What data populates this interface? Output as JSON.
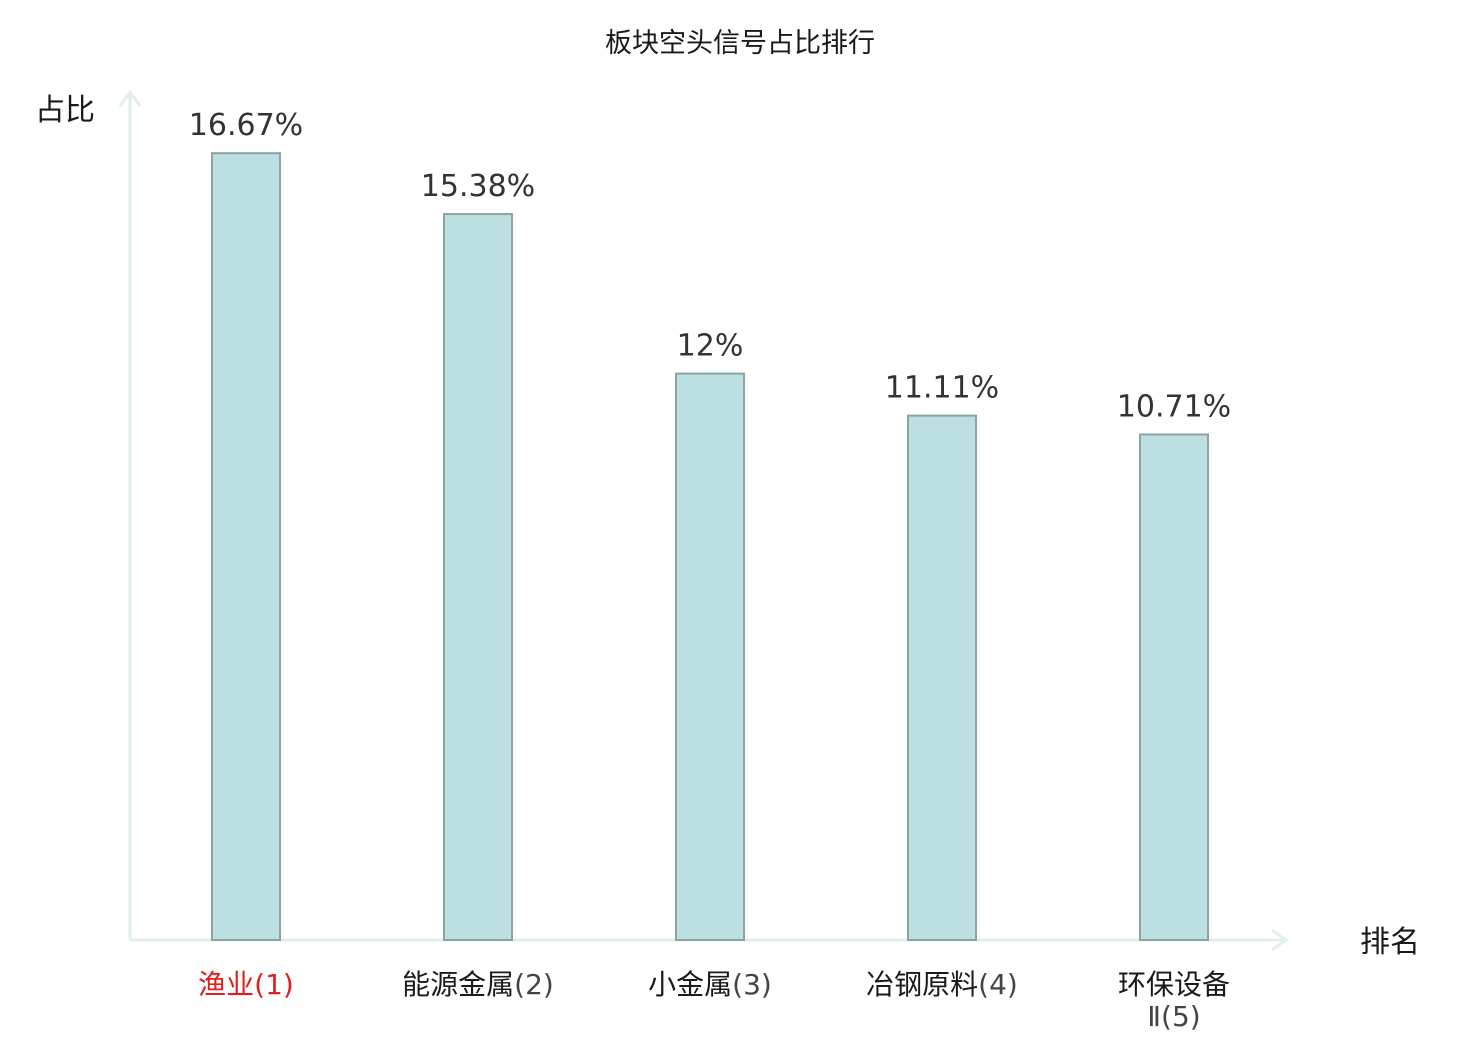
{
  "chart_data": {
    "type": "bar",
    "title": "板块空头信号占比排行",
    "ylabel": "占比",
    "xlabel": "排名",
    "ylim": [
      0,
      20
    ],
    "categories": [
      {
        "name": "渔业",
        "rank": "(1)",
        "highlight": true
      },
      {
        "name": "能源金属",
        "rank": "(2)",
        "highlight": false
      },
      {
        "name": "小金属",
        "rank": "(3)",
        "highlight": false
      },
      {
        "name": "冶钢原料",
        "rank": "(4)",
        "highlight": false
      },
      {
        "name": "环保设备",
        "rank": "Ⅱ(5)",
        "highlight": false
      }
    ],
    "values": [
      16.67,
      15.38,
      12,
      11.11,
      10.71
    ],
    "value_labels": [
      "16.67%",
      "15.38%",
      "12%",
      "11.11%",
      "10.71%"
    ],
    "grid": false,
    "legend": "none"
  },
  "colors": {
    "bar_fill": "#bce0e1",
    "bar_stroke": "#8aa3a4",
    "axis": "#dff0ee",
    "highlight": "#e02020"
  }
}
